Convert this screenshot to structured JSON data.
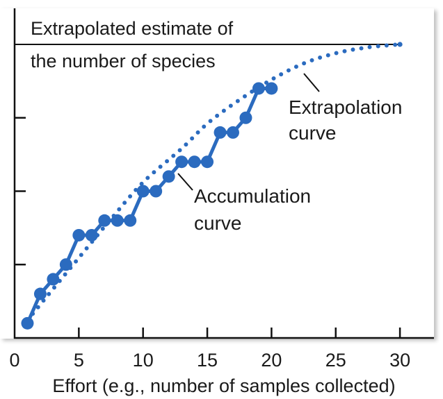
{
  "chart_data": {
    "type": "line",
    "title": "",
    "xlabel": "Effort (e.g., number of samples collected)",
    "ylabel": "",
    "xlim": [
      0,
      32
    ],
    "ylim": [
      0,
      22
    ],
    "x_ticks": [
      0,
      5,
      10,
      15,
      20,
      25,
      30
    ],
    "x_tick_labels": [
      "0",
      "5",
      "10",
      "15",
      "20",
      "25",
      "30"
    ],
    "y_ticks": [
      5,
      10,
      15
    ],
    "grid": false,
    "asymptote": {
      "value": 20,
      "label_line1": "Extrapolated estimate of",
      "label_line2": "the number of species"
    },
    "series": [
      {
        "name": "Accumulation curve",
        "style": "solid-with-markers",
        "color": "#2b6bbf",
        "x": [
          1,
          2,
          3,
          4,
          5,
          6,
          7,
          8,
          9,
          10,
          11,
          12,
          13,
          14,
          15,
          16,
          17,
          18,
          19,
          20
        ],
        "values": [
          1,
          3,
          4,
          5,
          7,
          7,
          8,
          8,
          8,
          10,
          10,
          11,
          12,
          12,
          12,
          14,
          14,
          15,
          17,
          17
        ]
      },
      {
        "name": "Extrapolation curve",
        "style": "dotted",
        "color": "#2b6bbf",
        "x": [
          1,
          2.3,
          4,
          5.7,
          7.5,
          10,
          13,
          15,
          17.3,
          20,
          22.5,
          25,
          27.5,
          30
        ],
        "values": [
          1.2,
          2.6,
          4.4,
          6.2,
          8.1,
          10.6,
          12.9,
          14.6,
          16.1,
          17.6,
          18.7,
          19.4,
          19.8,
          20
        ]
      }
    ],
    "annotations": [
      {
        "target": "Accumulation curve",
        "line1": "Accumulation",
        "line2": "curve"
      },
      {
        "target": "Extrapolation curve",
        "line1": "Extrapolation",
        "line2": "curve"
      }
    ]
  }
}
